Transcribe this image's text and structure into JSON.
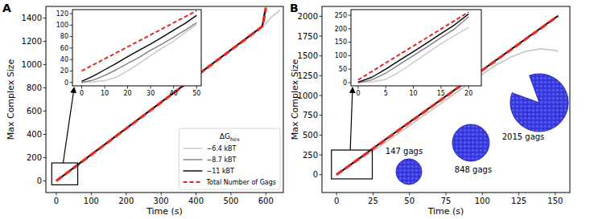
{
  "chart_data": [
    {
      "type": "line",
      "title": "A",
      "xlabel": "Time (s)",
      "ylabel": "Max Complex Size",
      "xlim": [
        -30,
        650
      ],
      "ylim": [
        -100,
        1500
      ],
      "xticks": [
        0,
        100,
        200,
        300,
        400,
        500,
        600
      ],
      "yticks": [
        0,
        200,
        400,
        600,
        800,
        1000,
        1200,
        1400
      ],
      "legend": "lower right",
      "legend_title": [
        "ΔG",
        "hex"
      ],
      "series": [
        {
          "name": "−6.4 kBT",
          "color": "#c8c8c8",
          "line_style": "solid",
          "x": [
            0,
            100,
            200,
            300,
            400,
            500,
            580,
            600,
            610,
            620,
            630,
            640
          ],
          "values": [
            0,
            222,
            448,
            672,
            898,
            1122,
            1300,
            1350,
            1390,
            1420,
            1440,
            1470
          ]
        },
        {
          "name": "−8.7 kBT",
          "color": "#808080",
          "line_style": "solid",
          "x": [
            0,
            100,
            200,
            300,
            400,
            500,
            580,
            590,
            600
          ],
          "values": [
            0,
            226,
            451,
            676,
            901,
            1126,
            1306,
            1332,
            1470
          ]
        },
        {
          "name": "−11 kBT",
          "color": "#000000",
          "line_style": "solid",
          "x": [
            0,
            100,
            200,
            300,
            400,
            500,
            580,
            590,
            595,
            600
          ],
          "values": [
            0,
            228,
            452,
            677,
            902,
            1127,
            1307,
            1330,
            1430,
            1480
          ]
        },
        {
          "name": "Total Number of Gags",
          "color": "#e8251f",
          "line_style": "dashed",
          "x": [
            0,
            100,
            200,
            300,
            400,
            500,
            580,
            590,
            595,
            600
          ],
          "values": [
            0,
            225,
            450,
            675,
            900,
            1125,
            1305,
            1330,
            1400,
            1490
          ]
        }
      ]
    },
    {
      "type": "line",
      "xlim": [
        -4,
        52
      ],
      "ylim": [
        -6,
        127
      ],
      "xticks": [
        0,
        10,
        20,
        30,
        40,
        50
      ],
      "yticks": [
        0,
        20,
        40,
        60,
        80,
        100,
        120
      ],
      "series": [
        {
          "color": "#c8c8c8",
          "line_style": "solid",
          "x": [
            0,
            5,
            10,
            15,
            20,
            25,
            30,
            35,
            40,
            45,
            50
          ],
          "values": [
            0,
            1,
            3,
            9,
            20,
            33,
            47,
            60,
            72,
            87,
            101
          ]
        },
        {
          "color": "#808080",
          "line_style": "solid",
          "x": [
            0,
            5,
            10,
            15,
            20,
            25,
            30,
            35,
            40,
            45,
            50
          ],
          "values": [
            0,
            4,
            12,
            22,
            33,
            44,
            56,
            67,
            79,
            91,
            104
          ]
        },
        {
          "color": "#000000",
          "line_style": "solid",
          "x": [
            0,
            5,
            10,
            15,
            20,
            25,
            30,
            35,
            40,
            45,
            50
          ],
          "values": [
            2,
            11,
            22,
            33,
            45,
            56,
            67,
            79,
            91,
            103,
            117
          ]
        },
        {
          "color": "#e8251f",
          "line_style": "dashed",
          "x": [
            0,
            5,
            10,
            15,
            20,
            25,
            30,
            35,
            40,
            45,
            50
          ],
          "values": [
            20,
            30.5,
            41,
            51.5,
            62,
            72.5,
            83,
            93.5,
            104,
            114.5,
            125
          ]
        }
      ]
    },
    {
      "type": "line",
      "title": "B",
      "xlabel": "Time (s)",
      "ylabel": "Max Complex Size",
      "xlim": [
        -10,
        160
      ],
      "ylim": [
        -225,
        2125
      ],
      "xticks": [
        0,
        25,
        50,
        75,
        100,
        125,
        150
      ],
      "yticks": [
        0,
        250,
        500,
        750,
        1000,
        1250,
        1500,
        1750,
        2000
      ],
      "annotations": [
        "147 gags",
        "848 gags",
        "2015 gags"
      ],
      "series": [
        {
          "color": "#c8c8c8",
          "line_style": "solid",
          "x": [
            0,
            25,
            50,
            75,
            100,
            110,
            120,
            130,
            140,
            150,
            152
          ],
          "values": [
            0,
            300,
            620,
            945,
            1270,
            1390,
            1490,
            1560,
            1590,
            1570,
            1555
          ]
        },
        {
          "color": "#808080",
          "line_style": "solid",
          "x": [
            0,
            25,
            50,
            75,
            100,
            125,
            150,
            152
          ],
          "values": [
            0,
            331,
            661,
            991,
            1321,
            1651,
            1981,
            2003
          ]
        },
        {
          "color": "#000000",
          "line_style": "solid",
          "x": [
            0,
            25,
            50,
            75,
            100,
            125,
            150,
            152
          ],
          "values": [
            0,
            333,
            663,
            993,
            1323,
            1653,
            1983,
            2005
          ]
        },
        {
          "color": "#e8251f",
          "line_style": "dashed",
          "x": [
            0,
            25,
            50,
            75,
            100,
            125,
            150,
            152
          ],
          "values": [
            0,
            330,
            660,
            990,
            1320,
            1650,
            1980,
            2005
          ]
        }
      ]
    },
    {
      "type": "line",
      "xlim": [
        -1.3,
        22.3
      ],
      "ylim": [
        -12,
        271
      ],
      "xticks": [
        0,
        5,
        10,
        15,
        20
      ],
      "yticks": [
        0,
        50,
        100,
        150,
        200,
        250
      ],
      "series": [
        {
          "color": "#c8c8c8",
          "line_style": "solid",
          "x": [
            0,
            2.5,
            5,
            7.5,
            10,
            12.5,
            15,
            17.5,
            20
          ],
          "values": [
            0,
            3,
            12,
            40,
            75,
            110,
            145,
            175,
            205
          ]
        },
        {
          "color": "#808080",
          "line_style": "solid",
          "x": [
            0,
            2.5,
            5,
            7.5,
            10,
            12.5,
            15,
            17.5,
            20
          ],
          "values": [
            0,
            10,
            35,
            68,
            100,
            133,
            167,
            200,
            245
          ]
        },
        {
          "color": "#000000",
          "line_style": "solid",
          "x": [
            0,
            2.5,
            5,
            7.5,
            10,
            12.5,
            15,
            17.5,
            20
          ],
          "values": [
            2,
            20,
            50,
            83,
            115,
            148,
            182,
            215,
            255
          ]
        },
        {
          "color": "#e8251f",
          "line_style": "dashed",
          "x": [
            0,
            2.5,
            5,
            7.5,
            10,
            12.5,
            15,
            17.5,
            20
          ],
          "values": [
            10,
            41.5,
            73,
            104.5,
            136,
            167.5,
            199,
            230.5,
            262
          ]
        }
      ]
    }
  ]
}
